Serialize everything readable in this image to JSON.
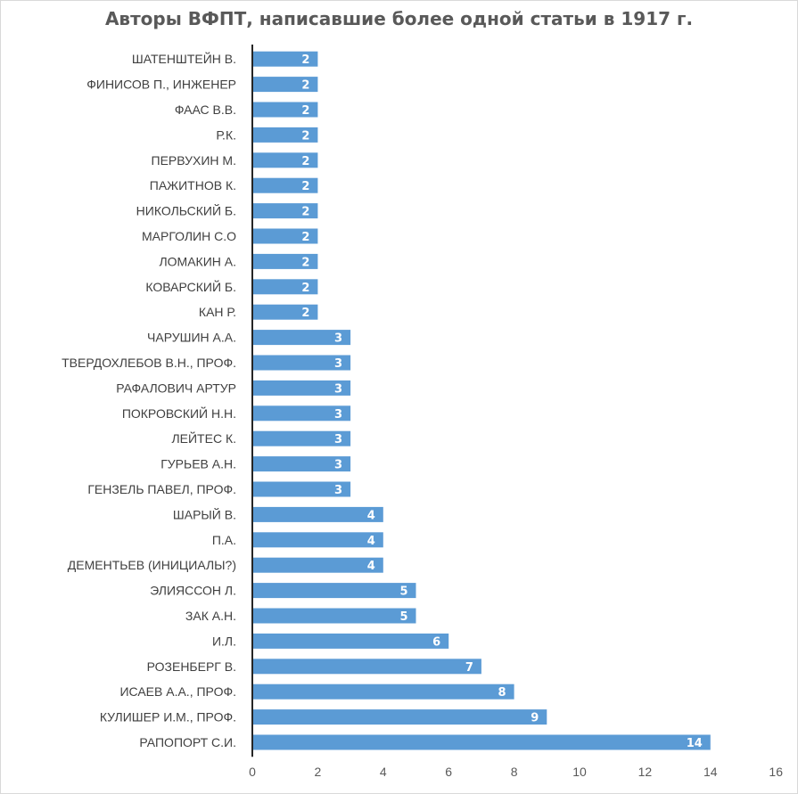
{
  "chart_data": {
    "type": "bar",
    "orientation": "horizontal",
    "title": "Авторы ВФПТ, написавшие более одной статьи в 1917 г.",
    "xlabel": "",
    "ylabel": "",
    "xlim": [
      0,
      16
    ],
    "x_ticks": [
      0,
      2,
      4,
      6,
      8,
      10,
      12,
      14,
      16
    ],
    "grid": false,
    "legend": "none",
    "bar_color": "#5b9bd5",
    "data_labels": true,
    "categories": [
      "ШАТЕНШТЕЙН В.",
      "ФИНИСОВ П., ИНЖЕНЕР",
      "ФААС В.В.",
      "Р.К.",
      "ПЕРВУХИН М.",
      "ПАЖИТНОВ К.",
      "НИКОЛЬСКИЙ Б.",
      "МАРГОЛИН С.О",
      "ЛОМАКИН А.",
      "КОВАРСКИЙ Б.",
      "КАН Р.",
      "ЧАРУШИН А.А.",
      "ТВЕРДОХЛЕБОВ В.Н., ПРОФ.",
      "РАФАЛОВИЧ АРТУР",
      "ПОКРОВСКИЙ Н.Н.",
      "ЛЕЙТЕС К.",
      "ГУРЬЕВ А.Н.",
      "ГЕНЗЕЛЬ ПАВЕЛ, ПРОФ.",
      "ШАРЫЙ В.",
      "П.А.",
      "ДЕМЕНТЬЕВ (ИНИЦИАЛЫ?)",
      "ЭЛИЯССОН Л.",
      "ЗАК А.Н.",
      "И.Л.",
      "РОЗЕНБЕРГ В.",
      "ИСАЕВ А.А., ПРОФ.",
      "КУЛИШЕР И.М., ПРОФ.",
      "РАПОПОРТ С.И."
    ],
    "values": [
      2,
      2,
      2,
      2,
      2,
      2,
      2,
      2,
      2,
      2,
      2,
      3,
      3,
      3,
      3,
      3,
      3,
      3,
      4,
      4,
      4,
      5,
      5,
      6,
      7,
      8,
      9,
      14
    ]
  }
}
